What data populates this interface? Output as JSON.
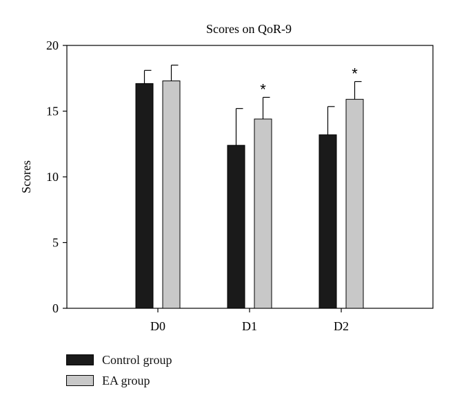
{
  "chart_data": {
    "type": "bar",
    "title": "Scores on QoR-9",
    "xlabel": "",
    "ylabel": "Scores",
    "ylim": [
      0,
      20
    ],
    "yticks": [
      "0",
      "5",
      "10",
      "15",
      "20"
    ],
    "categories": [
      "D0",
      "D1",
      "D2"
    ],
    "series": [
      {
        "name": "Control group",
        "color": "#1a1a1a",
        "values": [
          17.1,
          12.4,
          13.2
        ],
        "errors": [
          1.0,
          2.8,
          2.15
        ]
      },
      {
        "name": "EA group",
        "color": "#c8c8c8",
        "values": [
          17.3,
          14.4,
          15.9
        ],
        "errors": [
          1.2,
          1.65,
          1.35
        ]
      }
    ],
    "annotations": [
      {
        "category": "D1",
        "series": "EA group",
        "text": "*"
      },
      {
        "category": "D2",
        "series": "EA group",
        "text": "*"
      }
    ],
    "legend_position": "bottom-left",
    "grid": false
  }
}
